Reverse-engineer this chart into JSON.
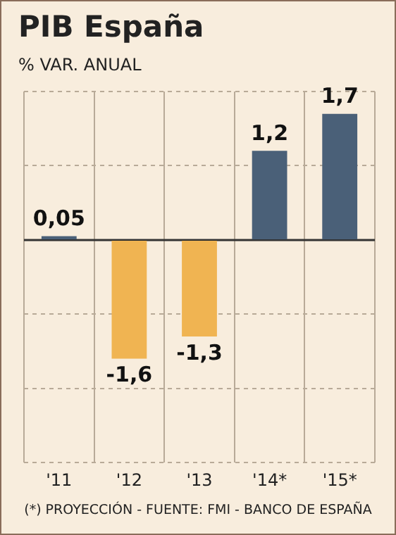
{
  "chart_data": {
    "type": "bar",
    "title": "PIB España",
    "subtitle": "% VAR. ANUAL",
    "categories": [
      "'11",
      "'12",
      "'13",
      "'14*",
      "'15*"
    ],
    "values": [
      0.05,
      -1.6,
      -1.3,
      1.2,
      1.7
    ],
    "colors": [
      "#4a6078",
      "#f0b452",
      "#f0b452",
      "#4a6078",
      "#4a6078"
    ],
    "value_labels": [
      "0,05",
      "-1,6",
      "-1,3",
      "1,2",
      "1,7"
    ],
    "ylim": [
      -3,
      2
    ],
    "yticks": [
      {
        "value": -3,
        "label": null
      },
      {
        "value": -2,
        "label": null
      },
      {
        "value": -1,
        "label": null
      },
      {
        "value": 0,
        "label": null
      },
      {
        "value": 1,
        "label": null
      },
      {
        "value": 2,
        "label": null
      }
    ],
    "grid": true,
    "tick_labels": "x",
    "legend": false,
    "annotations": [
      "(*) PROYECCIÓN - FUENTE: FMI - BANCO DE ESPAÑA"
    ]
  }
}
